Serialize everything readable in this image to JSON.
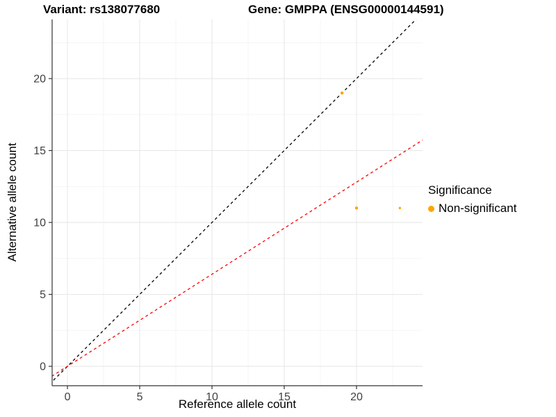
{
  "chart_data": {
    "type": "scatter",
    "title_left": "Variant: rs138077680",
    "title_right": "Gene: GMPPA (ENSG00000144591)",
    "xlabel": "Reference allele count",
    "ylabel": "Alternative allele count",
    "xlim": [
      -1.06,
      24.57
    ],
    "ylim": [
      -1.35,
      24.11
    ],
    "xticks": [
      0,
      5,
      10,
      15,
      20
    ],
    "yticks": [
      0,
      5,
      10,
      15,
      20
    ],
    "xminor": [
      2.5,
      7.5,
      12.5,
      17.5,
      22.5
    ],
    "yminor": [
      2.5,
      7.5,
      12.5,
      17.5,
      22.5
    ],
    "grid": true,
    "legend_position": "right",
    "series": [
      {
        "name": "Non-significant",
        "color": "#FFA500",
        "points": [
          {
            "x": 19,
            "y": 19,
            "r": 2.2
          },
          {
            "x": 20,
            "y": 11,
            "r": 2.2
          },
          {
            "x": 23,
            "y": 11,
            "r": 1.7
          }
        ]
      }
    ],
    "lines": [
      {
        "name": "identity-line",
        "slope": 1,
        "intercept": 0,
        "color": "#000000",
        "style": "dashed"
      },
      {
        "name": "expected-ratio-line",
        "slope": 0.64,
        "intercept": 0,
        "color": "#FF0000",
        "style": "dashed"
      }
    ],
    "legend": {
      "title": "Significance",
      "items": [
        {
          "label": "Non-significant",
          "color": "#FFA500"
        }
      ]
    },
    "colors": {
      "grid_major": "#e8e8e8",
      "grid_minor": "#f3f3f3",
      "axis": "#333333",
      "tick_label": "#404040",
      "point": "#FFA500"
    }
  }
}
